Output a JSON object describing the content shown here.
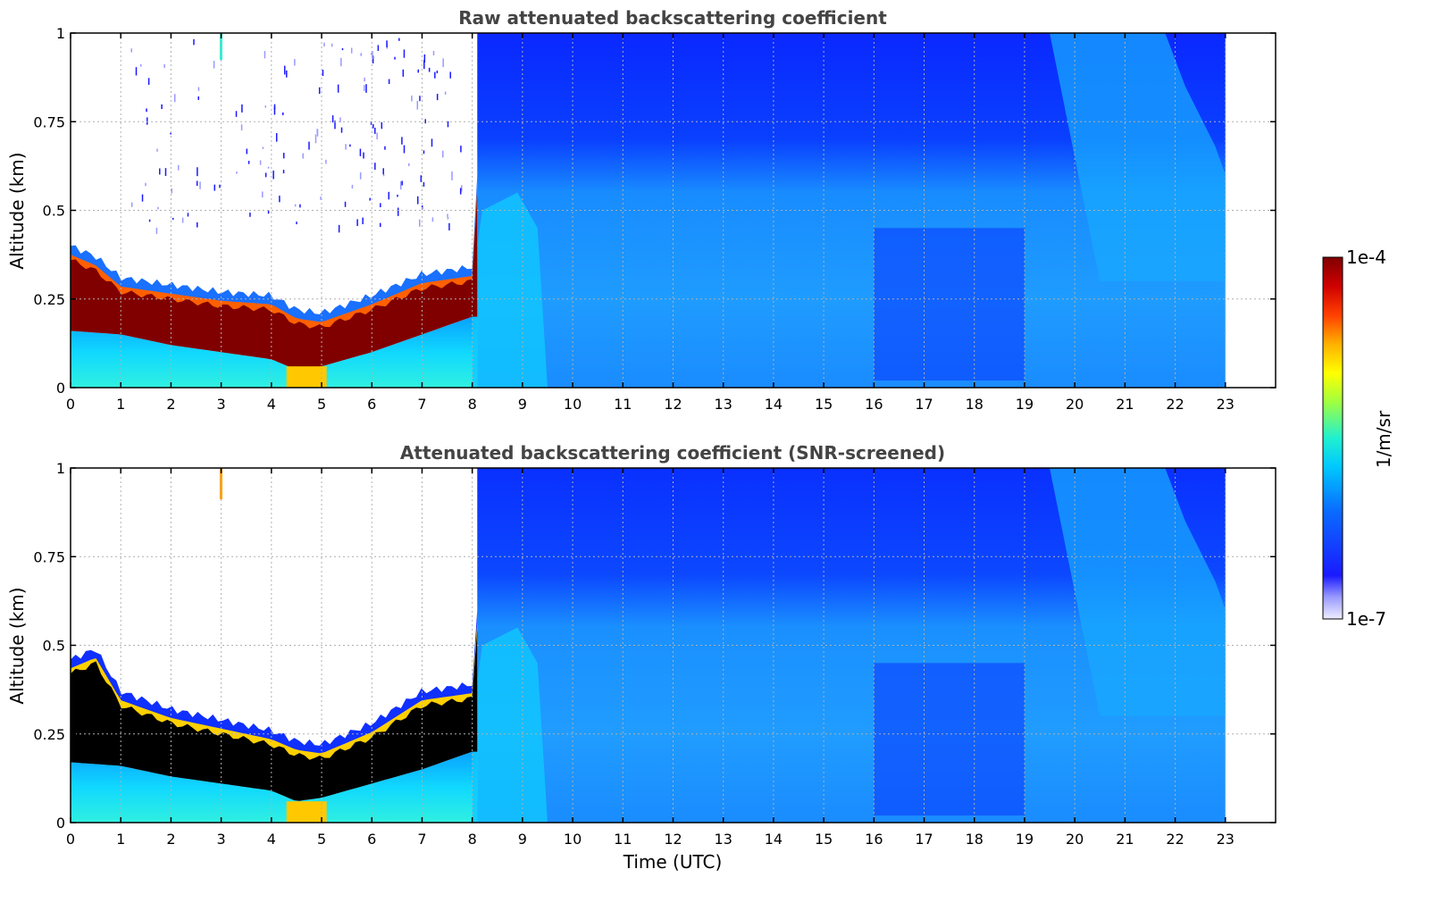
{
  "chart_data": [
    {
      "type": "heatmap",
      "title": "Raw attenuated backscattering coefficient",
      "xlabel": "",
      "ylabel": "Altitude (km)",
      "xlim": [
        0,
        24
      ],
      "ylim": [
        0,
        1
      ],
      "xticks": [
        "0",
        "1",
        "2",
        "3",
        "4",
        "5",
        "6",
        "7",
        "8",
        "9",
        "10",
        "11",
        "12",
        "13",
        "14",
        "15",
        "16",
        "17",
        "18",
        "19",
        "20",
        "21",
        "22",
        "23"
      ],
      "yticks": [
        "0",
        "0.25",
        "0.5",
        "0.75",
        "1"
      ],
      "grid": true,
      "data_time_range": [
        0,
        23
      ],
      "layers": [
        {
          "description": "dense layer top boundary (km)",
          "x": [
            0,
            0.5,
            1,
            2,
            3,
            4,
            4.5,
            5,
            6,
            7,
            8,
            8.1
          ],
          "values": [
            0.36,
            0.33,
            0.27,
            0.25,
            0.23,
            0.22,
            0.18,
            0.17,
            0.22,
            0.28,
            0.3,
            0.55
          ]
        },
        {
          "description": "dense layer bottom boundary (km)",
          "x": [
            0,
            1,
            2,
            3,
            4,
            4.5,
            5,
            6,
            7,
            8
          ],
          "values": [
            0.16,
            0.15,
            0.12,
            0.1,
            0.08,
            0.05,
            0.06,
            0.1,
            0.15,
            0.2
          ]
        }
      ],
      "sparse_signal": "00:00–08:00 above layer",
      "colorbar": {
        "label": "1/m/sr",
        "min": "1e-7",
        "max": "1e-4",
        "scale": "log",
        "colormap": "jet"
      }
    },
    {
      "type": "heatmap",
      "title": "Attenuated backscattering coefficient (SNR-screened)",
      "xlabel": "Time (UTC)",
      "ylabel": "Altitude (km)",
      "xlim": [
        0,
        24
      ],
      "ylim": [
        0,
        1
      ],
      "xticks": [
        "0",
        "1",
        "2",
        "3",
        "4",
        "5",
        "6",
        "7",
        "8",
        "9",
        "10",
        "11",
        "12",
        "13",
        "14",
        "15",
        "16",
        "17",
        "18",
        "19",
        "20",
        "21",
        "22",
        "23"
      ],
      "yticks": [
        "0",
        "0.25",
        "0.5",
        "0.75",
        "1"
      ],
      "grid": true,
      "data_time_range": [
        0,
        23
      ],
      "layers": [
        {
          "description": "saturated layer top boundary (km)",
          "x": [
            0,
            0.5,
            1,
            2,
            3,
            4,
            4.5,
            5,
            6,
            7,
            8,
            8.1
          ],
          "values": [
            0.42,
            0.45,
            0.33,
            0.28,
            0.25,
            0.22,
            0.19,
            0.18,
            0.24,
            0.33,
            0.35,
            0.55
          ]
        },
        {
          "description": "saturated layer bottom boundary (km)",
          "x": [
            0,
            1,
            2,
            3,
            4,
            4.5,
            5,
            6,
            7,
            8
          ],
          "values": [
            0.17,
            0.16,
            0.13,
            0.11,
            0.09,
            0.06,
            0.07,
            0.11,
            0.15,
            0.2
          ]
        }
      ],
      "colorbar": {
        "label": "1/m/sr",
        "min": "1e-7",
        "max": "1e-4",
        "scale": "log",
        "colormap": "jet"
      }
    }
  ],
  "colorbar": {
    "label": "1/m/sr",
    "max_label": "1e-4",
    "min_label": "1e-7",
    "colors": {
      "saturated": "#000000",
      "high": "#800000",
      "background_blue": "#0a28ff",
      "light_blue": "#1aa0ff",
      "low": "#e8e8ff"
    }
  }
}
